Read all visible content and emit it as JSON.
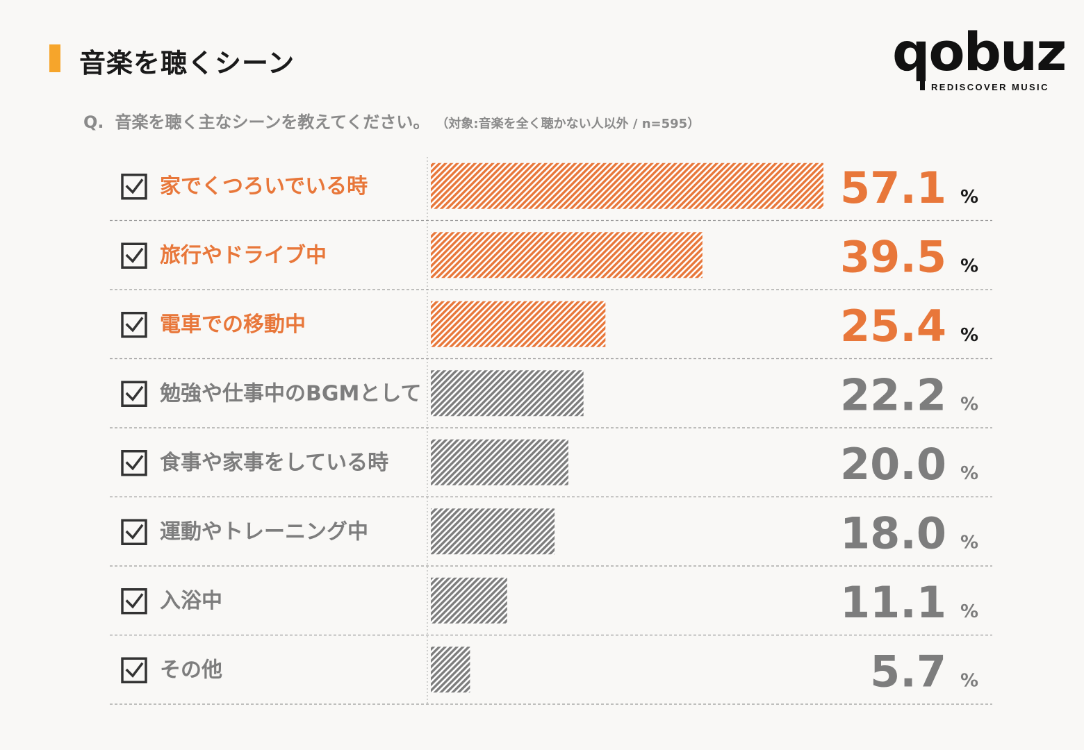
{
  "header": {
    "title": "音楽を聴くシーン"
  },
  "logo": {
    "wordmark": "qobuz",
    "tagline": "REDISCOVER MUSIC"
  },
  "question": {
    "prefix": "Q.",
    "text": "音楽を聴く主なシーンを教えてください。",
    "note": "（対象:音楽を全く聴かない人以外 / n=595）"
  },
  "colors": {
    "highlight": "#e8773a",
    "normal": "#7d7d7d",
    "checkbox": "#333333",
    "accent": "#f6a52b"
  },
  "chart_data": {
    "type": "bar",
    "orientation": "horizontal",
    "unit": "%",
    "categories": [
      "家でくつろいでいる時",
      "旅行やドライブ中",
      "電車での移動中",
      "勉強や仕事中のBGMとして",
      "食事や家事をしている時",
      "運動やトレーニング中",
      "入浴中",
      "その他"
    ],
    "value_labels": [
      "57.1",
      "39.5",
      "25.4",
      "22.2",
      "20.0",
      "18.0",
      "11.1",
      "5.7"
    ],
    "values": [
      57.1,
      39.5,
      25.4,
      22.2,
      20.0,
      18.0,
      11.1,
      5.7
    ],
    "highlighted": [
      true,
      true,
      true,
      false,
      false,
      false,
      false,
      false
    ],
    "xlim": [
      0,
      60
    ]
  }
}
